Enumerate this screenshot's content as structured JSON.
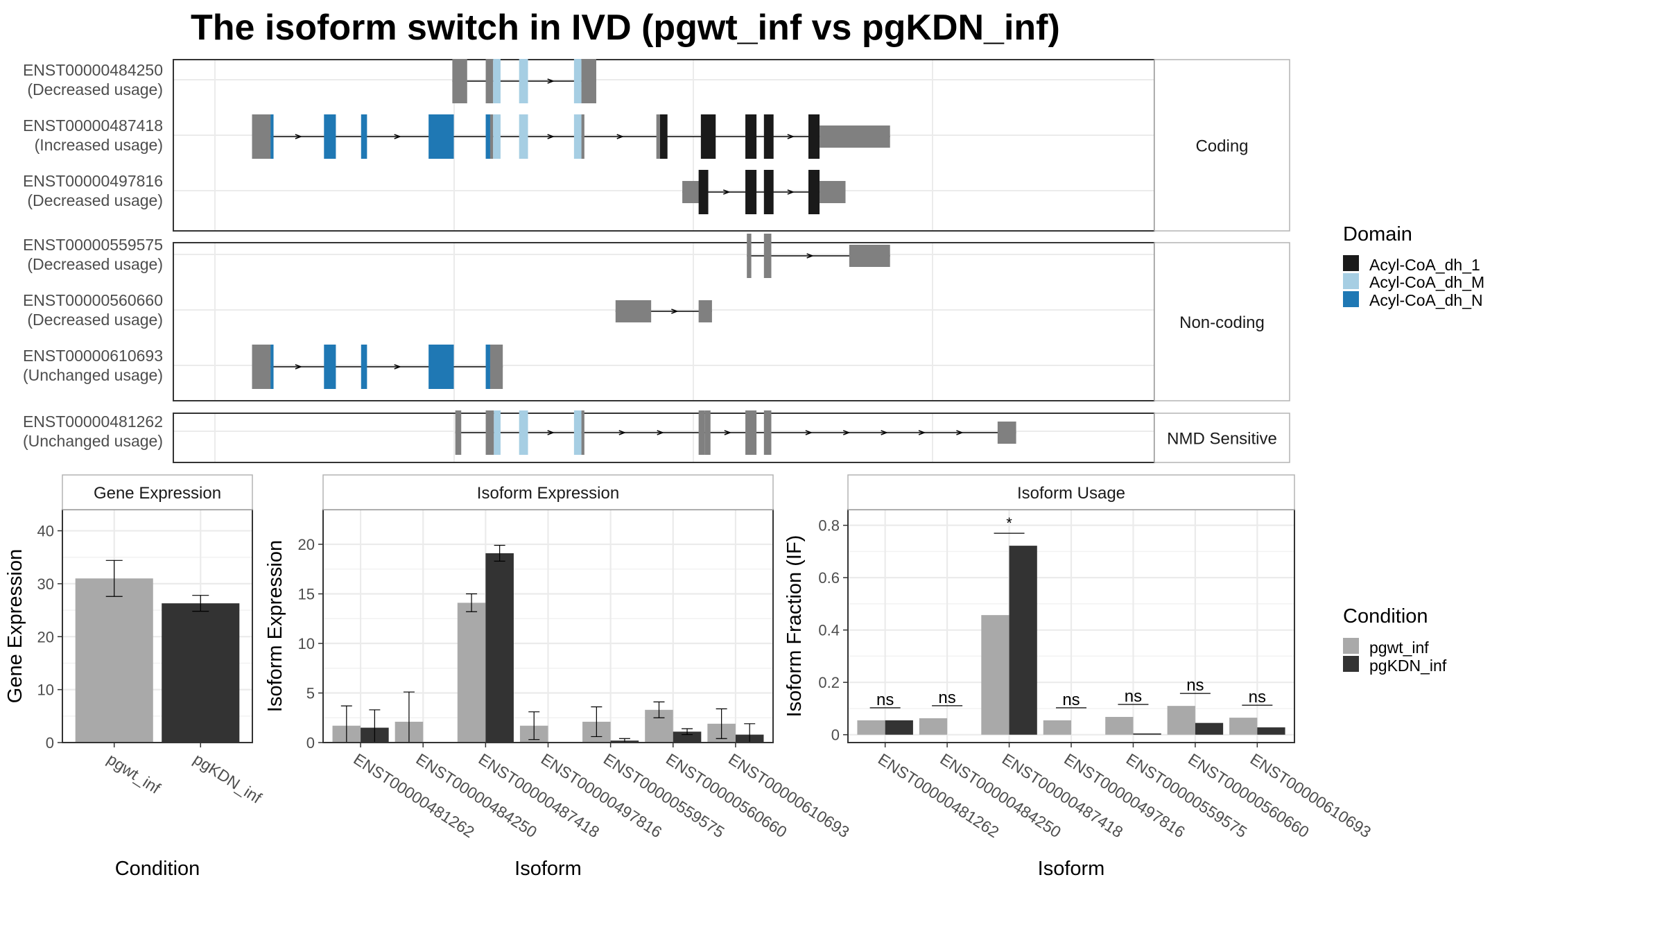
{
  "title": "The isoform switch in IVD (pgwt_inf vs pgKDN_inf)",
  "colors": {
    "utr": "#808080",
    "acyl_1": "#1a1a1a",
    "acyl_M": "#a6cee3",
    "acyl_N": "#1f78b4",
    "pgwt_inf": "#a9a9a9",
    "pgKDN_inf": "#333333",
    "panel_border": "#333333",
    "strip_border": "#b3b3b3",
    "grid": "#ebebeb"
  },
  "structure": {
    "groups": [
      {
        "label": "Coding",
        "isoforms": [
          {
            "id": "ENST00000484250",
            "usage": "(Decreased usage)",
            "blocks": [
              [
                0.32,
                0.34,
                "utr",
                "tall"
              ],
              [
                0.365,
                0.375,
                "utr",
                "tall"
              ],
              [
                0.375,
                0.385,
                "acyl_M",
                "tall"
              ],
              [
                0.41,
                0.422,
                "acyl_M",
                "tall"
              ],
              [
                0.484,
                0.494,
                "acyl_M",
                "tall"
              ],
              [
                0.494,
                0.5,
                "utr",
                "tall"
              ],
              [
                0.5,
                0.514,
                "utr",
                "tall"
              ]
            ]
          },
          {
            "id": "ENST00000487418",
            "usage": "(Increased usage)",
            "blocks": [
              [
                0.05,
                0.075,
                "utr",
                "tall"
              ],
              [
                0.055,
                0.075,
                "utr",
                "tall"
              ],
              [
                0.075,
                0.079,
                "acyl_N",
                "tall"
              ],
              [
                0.147,
                0.163,
                "acyl_N",
                "tall"
              ],
              [
                0.197,
                0.205,
                "acyl_N",
                "tall"
              ],
              [
                0.288,
                0.322,
                "acyl_N",
                "tall"
              ],
              [
                0.365,
                0.371,
                "acyl_N",
                "tall"
              ],
              [
                0.371,
                0.375,
                "utr",
                "tall"
              ],
              [
                0.375,
                0.385,
                "acyl_M",
                "tall"
              ],
              [
                0.41,
                0.422,
                "acyl_M",
                "tall"
              ],
              [
                0.484,
                0.494,
                "acyl_M",
                "tall"
              ],
              [
                0.494,
                0.498,
                "utr",
                "tall"
              ],
              [
                0.595,
                0.6,
                "utr",
                "tall"
              ],
              [
                0.6,
                0.61,
                "acyl_1",
                "tall"
              ],
              [
                0.655,
                0.675,
                "acyl_1",
                "tall"
              ],
              [
                0.715,
                0.73,
                "acyl_1",
                "tall"
              ],
              [
                0.74,
                0.753,
                "acyl_1",
                "tall"
              ],
              [
                0.8,
                0.815,
                "acyl_1",
                "tall"
              ],
              [
                0.815,
                0.91,
                "utr",
                "short"
              ]
            ]
          },
          {
            "id": "ENST00000497816",
            "usage": "(Decreased usage)",
            "blocks": [
              [
                0.63,
                0.655,
                "utr",
                "short"
              ],
              [
                0.652,
                0.665,
                "acyl_1",
                "tall"
              ],
              [
                0.715,
                0.73,
                "acyl_1",
                "tall"
              ],
              [
                0.74,
                0.753,
                "acyl_1",
                "tall"
              ],
              [
                0.8,
                0.815,
                "acyl_1",
                "tall"
              ],
              [
                0.815,
                0.85,
                "utr",
                "short"
              ]
            ]
          }
        ]
      },
      {
        "label": "Non-coding",
        "isoforms": [
          {
            "id": "ENST00000559575",
            "usage": "(Decreased usage)",
            "blocks": [
              [
                0.717,
                0.723,
                "utr",
                "tall"
              ],
              [
                0.74,
                0.75,
                "utr",
                "tall"
              ],
              [
                0.855,
                0.91,
                "utr",
                "short"
              ]
            ]
          },
          {
            "id": "ENST00000560660",
            "usage": "(Decreased usage)",
            "blocks": [
              [
                0.54,
                0.588,
                "utr",
                "short"
              ],
              [
                0.652,
                0.67,
                "utr",
                "short"
              ]
            ]
          },
          {
            "id": "ENST00000610693",
            "usage": "(Unchanged usage)",
            "blocks": [
              [
                0.05,
                0.075,
                "utr",
                "tall"
              ],
              [
                0.055,
                0.075,
                "utr",
                "tall"
              ],
              [
                0.075,
                0.079,
                "acyl_N",
                "tall"
              ],
              [
                0.147,
                0.163,
                "acyl_N",
                "tall"
              ],
              [
                0.197,
                0.205,
                "acyl_N",
                "tall"
              ],
              [
                0.288,
                0.322,
                "acyl_N",
                "tall"
              ],
              [
                0.365,
                0.371,
                "acyl_N",
                "tall"
              ],
              [
                0.371,
                0.388,
                "utr",
                "tall"
              ]
            ]
          }
        ]
      },
      {
        "label": "NMD Sensitive",
        "isoforms": [
          {
            "id": "ENST00000481262",
            "usage": "(Unchanged usage)",
            "blocks": [
              [
                0.324,
                0.332,
                "utr",
                "tall"
              ],
              [
                0.365,
                0.376,
                "utr",
                "tall"
              ],
              [
                0.376,
                0.385,
                "acyl_M",
                "tall"
              ],
              [
                0.41,
                0.422,
                "acyl_M",
                "tall"
              ],
              [
                0.484,
                0.494,
                "acyl_M",
                "tall"
              ],
              [
                0.494,
                0.498,
                "utr",
                "tall"
              ],
              [
                0.652,
                0.66,
                "utr",
                "tall"
              ],
              [
                0.66,
                0.668,
                "utr",
                "tall"
              ],
              [
                0.715,
                0.73,
                "utr",
                "tall"
              ],
              [
                0.74,
                0.75,
                "utr",
                "tall"
              ],
              [
                1.055,
                1.08,
                "utr",
                "short"
              ]
            ]
          }
        ]
      }
    ]
  },
  "domain_legend": {
    "title": "Domain",
    "items": [
      {
        "label": "Acyl-CoA_dh_1",
        "color_key": "acyl_1"
      },
      {
        "label": "Acyl-CoA_dh_M",
        "color_key": "acyl_M"
      },
      {
        "label": "Acyl-CoA_dh_N",
        "color_key": "acyl_N"
      }
    ]
  },
  "condition_legend": {
    "title": "Condition",
    "items": [
      {
        "label": "pgwt_inf",
        "color_key": "pgwt_inf"
      },
      {
        "label": "pgKDN_inf",
        "color_key": "pgKDN_inf"
      }
    ]
  },
  "chart_data": [
    {
      "type": "bar",
      "strip": "Gene Expression",
      "xlabel": "Condition",
      "ylabel": "Gene Expression",
      "categories": [
        "pgwt_inf",
        "pgKDN_inf"
      ],
      "values": [
        31.0,
        26.3
      ],
      "errors": [
        3.4,
        1.5
      ],
      "ylim": [
        0,
        44
      ],
      "yticks": [
        0,
        10,
        20,
        30,
        40
      ]
    },
    {
      "type": "bar",
      "strip": "Isoform Expression",
      "xlabel": "Isoform",
      "ylabel": "Isoform Expression",
      "categories": [
        "ENST00000481262",
        "ENST00000484250",
        "ENST00000487418",
        "ENST00000497816",
        "ENST00000559575",
        "ENST00000560660",
        "ENST00000610693"
      ],
      "series": [
        {
          "name": "pgwt_inf",
          "values": [
            1.7,
            2.1,
            14.1,
            1.7,
            2.1,
            3.3,
            1.9
          ],
          "errors": [
            2.0,
            3.0,
            0.9,
            1.4,
            1.5,
            0.8,
            1.5
          ]
        },
        {
          "name": "pgKDN_inf",
          "values": [
            1.5,
            0.0,
            19.1,
            0.0,
            0.2,
            1.1,
            0.8
          ],
          "errors": [
            1.8,
            0.0,
            0.8,
            0.0,
            0.2,
            0.3,
            1.1
          ]
        }
      ],
      "ylim": [
        0,
        23.5
      ],
      "yticks": [
        0,
        5,
        10,
        15,
        20
      ]
    },
    {
      "type": "bar",
      "strip": "Isoform Usage",
      "xlabel": "Isoform",
      "ylabel": "Isoform Fraction (IF)",
      "categories": [
        "ENST00000481262",
        "ENST00000484250",
        "ENST00000487418",
        "ENST00000497816",
        "ENST00000559575",
        "ENST00000560660",
        "ENST00000610693"
      ],
      "series": [
        {
          "name": "pgwt_inf",
          "values": [
            0.055,
            0.063,
            0.457,
            0.055,
            0.068,
            0.11,
            0.065
          ]
        },
        {
          "name": "pgKDN_inf",
          "values": [
            0.055,
            0.0,
            0.722,
            0.0,
            0.005,
            0.045,
            0.028
          ]
        }
      ],
      "significance": [
        "ns",
        "ns",
        "*",
        "ns",
        "ns",
        "ns",
        "ns"
      ],
      "ylim": [
        -0.03,
        0.86
      ],
      "yticks": [
        0.0,
        0.2,
        0.4,
        0.6,
        0.8
      ]
    }
  ]
}
